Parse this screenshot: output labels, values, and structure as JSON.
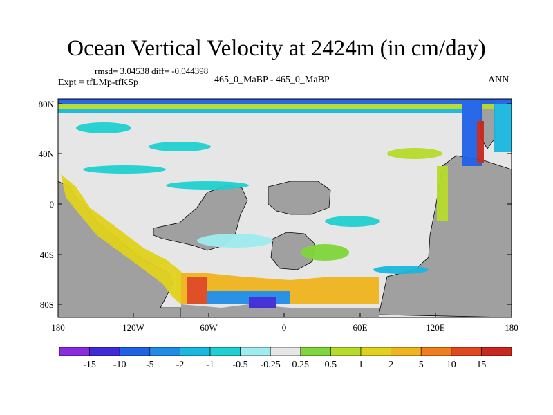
{
  "header": {
    "title": "Ocean Vertical Velocity at 2424m (in cm/day)",
    "stats": "rmsd= 3.04538 diff= -0.044398",
    "expt": "Expt = tfLMp-tfKSp",
    "center_label": "465_0_MaBP - 465_0_MaBP",
    "period": "ANN"
  },
  "axes": {
    "lat_ticks": [
      "80N",
      "40N",
      "0",
      "40S",
      "80S"
    ],
    "lon_ticks": [
      "180",
      "120W",
      "60W",
      "0",
      "60E",
      "120E",
      "180"
    ]
  },
  "colorbar": {
    "labels": [
      "-15",
      "-10",
      "-5",
      "-2",
      "-1",
      "-0.5",
      "-0.25",
      "0.25",
      "0.5",
      "1",
      "2",
      "5",
      "10",
      "15"
    ],
    "colors": [
      "#8a2be2",
      "#3f2bd9",
      "#1f62e6",
      "#1f8de6",
      "#1ab8e0",
      "#1fd0d0",
      "#9eecf0",
      "#e6e6e6",
      "#7fd63a",
      "#b6dc2a",
      "#e0d21c",
      "#f0b41e",
      "#f07e1c",
      "#e0481e",
      "#c8281e"
    ]
  },
  "legend_colors": {
    "land": "#a0a0a0",
    "near_zero_ocean": "#e6e6e6"
  }
}
